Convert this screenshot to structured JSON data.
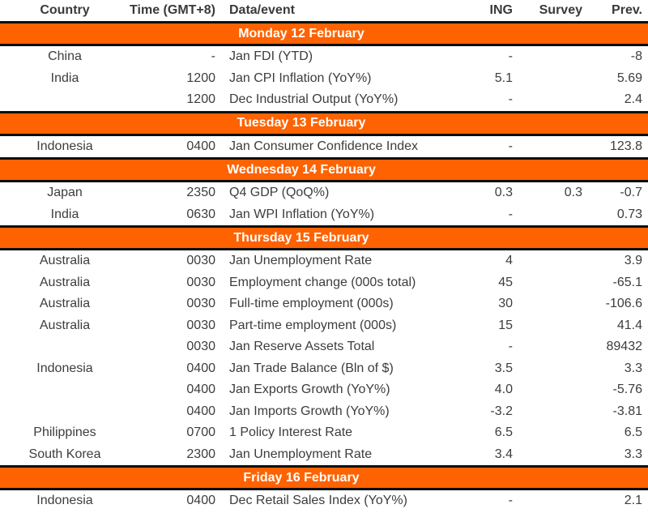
{
  "colors": {
    "accent_orange": "#FF6200",
    "band_text": "#FFFFFF",
    "body_text": "#3D3D3D",
    "border": "#0E0E0E"
  },
  "table": {
    "columns": [
      "Country",
      "Time (GMT+8)",
      "Data/event",
      "ING",
      "Survey",
      "Prev."
    ],
    "sections": [
      {
        "day": "Monday 12 February",
        "rows": [
          {
            "country": "China",
            "time": "-",
            "event": "Jan FDI (YTD)",
            "ing": "-",
            "survey": "",
            "prev": "-8"
          },
          {
            "country": "India",
            "time": "1200",
            "event": "Jan CPI Inflation (YoY%)",
            "ing": "5.1",
            "survey": "",
            "prev": "5.69"
          },
          {
            "country": "",
            "time": "1200",
            "event": "Dec Industrial Output (YoY%)",
            "ing": "-",
            "survey": "",
            "prev": "2.4"
          }
        ]
      },
      {
        "day": "Tuesday 13 February",
        "rows": [
          {
            "country": "Indonesia",
            "time": "0400",
            "event": "Jan Consumer Confidence Index",
            "ing": "-",
            "survey": "",
            "prev": "123.8"
          }
        ]
      },
      {
        "day": "Wednesday 14 February",
        "rows": [
          {
            "country": "Japan",
            "time": "2350",
            "event": "Q4 GDP (QoQ%)",
            "ing": "0.3",
            "survey": "0.3",
            "prev": "-0.7"
          },
          {
            "country": "India",
            "time": "0630",
            "event": "Jan WPI Inflation (YoY%)",
            "ing": "-",
            "survey": "",
            "prev": "0.73"
          }
        ]
      },
      {
        "day": "Thursday 15 February",
        "rows": [
          {
            "country": "Australia",
            "time": "0030",
            "event": "Jan Unemployment Rate",
            "ing": "4",
            "survey": "",
            "prev": "3.9"
          },
          {
            "country": "Australia",
            "time": "0030",
            "event": "Employment change (000s total)",
            "ing": "45",
            "survey": "",
            "prev": "-65.1"
          },
          {
            "country": "Australia",
            "time": "0030",
            "event": "Full-time employment (000s)",
            "ing": "30",
            "survey": "",
            "prev": "-106.6"
          },
          {
            "country": "Australia",
            "time": "0030",
            "event": "Part-time employment (000s)",
            "ing": "15",
            "survey": "",
            "prev": "41.4"
          },
          {
            "country": "",
            "time": "0030",
            "event": "Jan Reserve Assets Total",
            "ing": "-",
            "survey": "",
            "prev": "89432"
          },
          {
            "country": "Indonesia",
            "time": "0400",
            "event": "Jan Trade Balance (Bln of $)",
            "ing": "3.5",
            "survey": "",
            "prev": "3.3"
          },
          {
            "country": "",
            "time": "0400",
            "event": "Jan Exports Growth (YoY%)",
            "ing": "4.0",
            "survey": "",
            "prev": "-5.76"
          },
          {
            "country": "",
            "time": "0400",
            "event": "Jan Imports Growth (YoY%)",
            "ing": "-3.2",
            "survey": "",
            "prev": "-3.81"
          },
          {
            "country": "Philippines",
            "time": "0700",
            "event": "1 Policy Interest Rate",
            "ing": "6.5",
            "survey": "",
            "prev": "6.5"
          },
          {
            "country": "South Korea",
            "time": "2300",
            "event": "Jan Unemployment Rate",
            "ing": "3.4",
            "survey": "",
            "prev": "3.3"
          }
        ]
      },
      {
        "day": "Friday 16 February",
        "rows": [
          {
            "country": "Indonesia",
            "time": "0400",
            "event": "Dec Retail Sales Index (YoY%)",
            "ing": "-",
            "survey": "",
            "prev": "2.1"
          }
        ]
      }
    ]
  }
}
